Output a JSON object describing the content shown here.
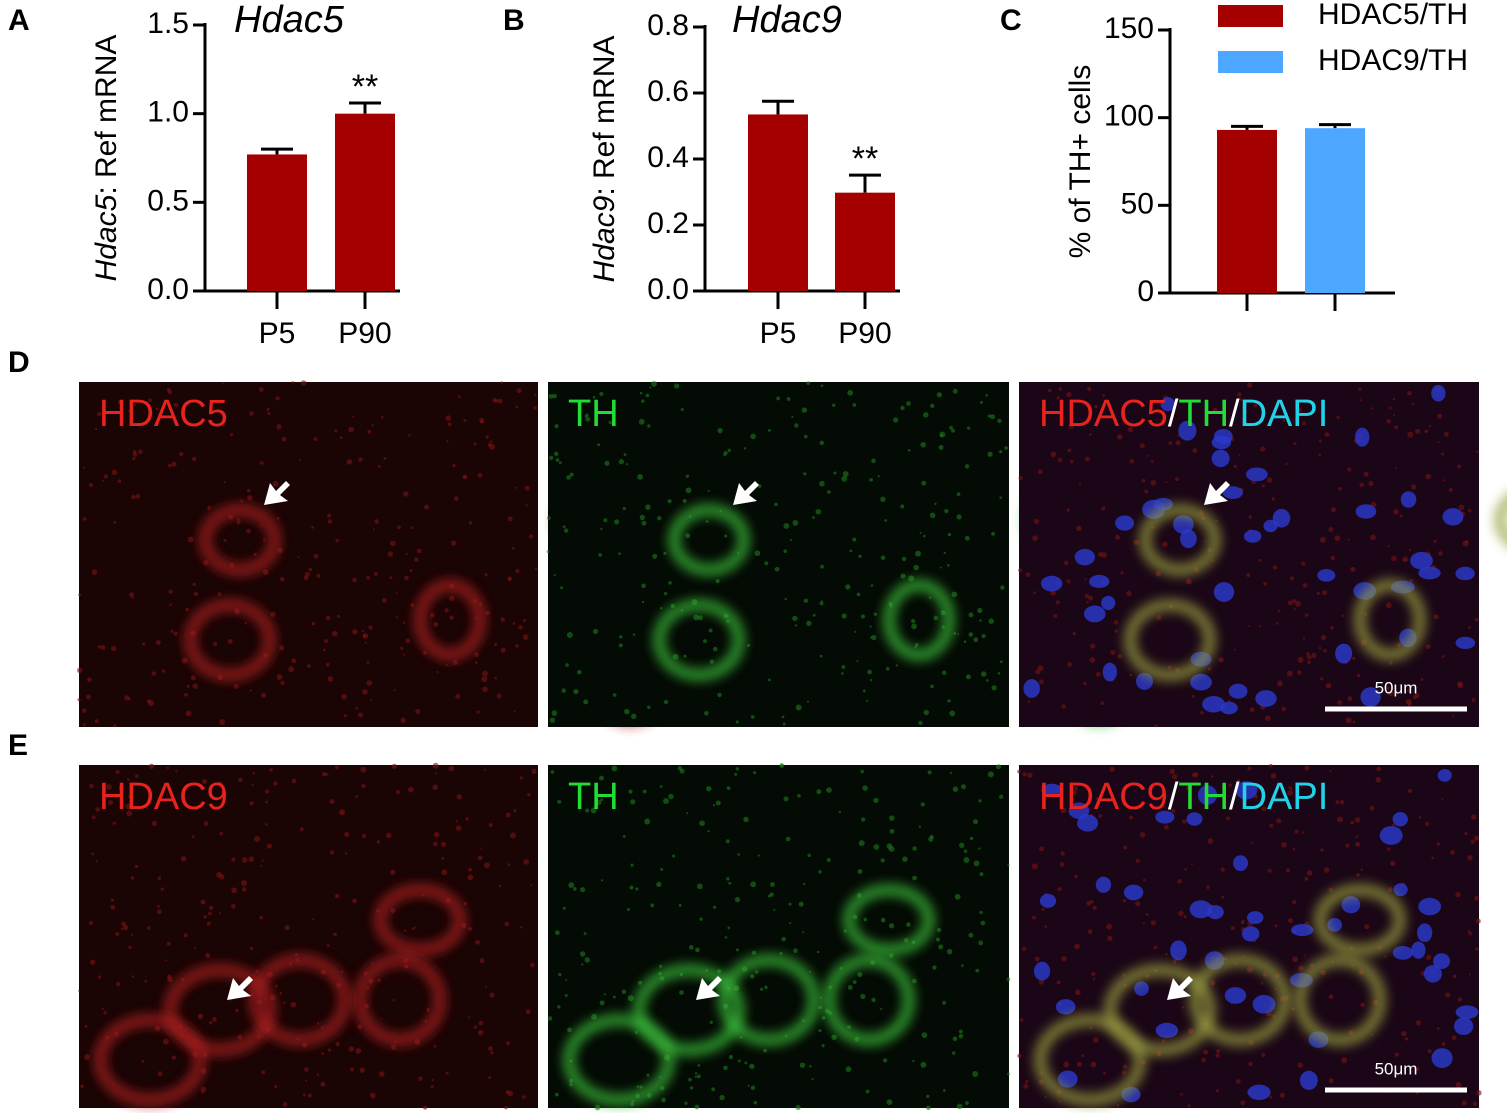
{
  "chart_data": [
    {
      "type": "bar",
      "panel": "A",
      "title": "Hdac5",
      "y_label_italic": "Hdac5",
      "y_label": ": Ref mRNA",
      "categories": [
        "P5",
        "P90"
      ],
      "values": [
        0.77,
        1.0
      ],
      "errors": [
        0.03,
        0.06
      ],
      "significance": [
        null,
        "**"
      ],
      "color": "#a50000",
      "ylim": [
        0,
        1.5
      ],
      "yticks": [
        {
          "value": 0,
          "label": "0.0"
        },
        0.5,
        {
          "value": 1.0,
          "label": "1.0"
        },
        1.5
      ]
    },
    {
      "type": "bar",
      "panel": "B",
      "title": "Hdac9",
      "y_label_italic": "Hdac9",
      "y_label": ": Ref mRNA",
      "categories": [
        "P5",
        "P90"
      ],
      "values": [
        0.535,
        0.298
      ],
      "errors": [
        0.04,
        0.053
      ],
      "significance": [
        null,
        "**"
      ],
      "color": "#a50000",
      "ylim": [
        0,
        0.8
      ],
      "yticks": [
        {
          "value": 0,
          "label": "0.0"
        },
        0.2,
        0.4,
        0.6,
        0.8
      ]
    },
    {
      "type": "bar",
      "panel": "C",
      "y_label": "% of TH+ cells",
      "categories": [
        null,
        null
      ],
      "series": [
        {
          "name": "HDAC5/TH",
          "color": "#a50000",
          "values": [
            93,
            null
          ],
          "errors": [
            2,
            null
          ]
        },
        {
          "name": "HDAC9/TH",
          "color": "#4da6ff",
          "values": [
            null,
            94
          ],
          "errors": [
            null,
            2
          ]
        }
      ],
      "ylim": [
        0,
        150
      ],
      "yticks": [
        0,
        50,
        100,
        150
      ]
    }
  ],
  "image_rows": [
    {
      "panel": "D",
      "scale_bar": "50μm",
      "images": [
        {
          "label": [
            {
              "text": "HDAC5",
              "color": "#e8231e"
            }
          ],
          "tint": "red"
        },
        {
          "label": [
            {
              "text": "TH",
              "color": "#22dd33"
            }
          ],
          "tint": "green"
        },
        {
          "label": [
            {
              "text": "HDAC5",
              "color": "#e8231e"
            },
            {
              "text": "/",
              "color": "#ffffff"
            },
            {
              "text": "TH",
              "color": "#22dd33"
            },
            {
              "text": "/",
              "color": "#ffffff"
            },
            {
              "text": "DAPI",
              "color": "#22d3e8"
            }
          ],
          "tint": "merge"
        }
      ]
    },
    {
      "panel": "E",
      "scale_bar": "50μm",
      "images": [
        {
          "label": [
            {
              "text": "HDAC9",
              "color": "#e8231e"
            }
          ],
          "tint": "red"
        },
        {
          "label": [
            {
              "text": "TH",
              "color": "#22dd33"
            }
          ],
          "tint": "green"
        },
        {
          "label": [
            {
              "text": "HDAC9",
              "color": "#e8231e"
            },
            {
              "text": "/",
              "color": "#ffffff"
            },
            {
              "text": "TH",
              "color": "#22dd33"
            },
            {
              "text": "/",
              "color": "#ffffff"
            },
            {
              "text": "DAPI",
              "color": "#22d3e8"
            }
          ],
          "tint": "merge"
        }
      ]
    }
  ]
}
